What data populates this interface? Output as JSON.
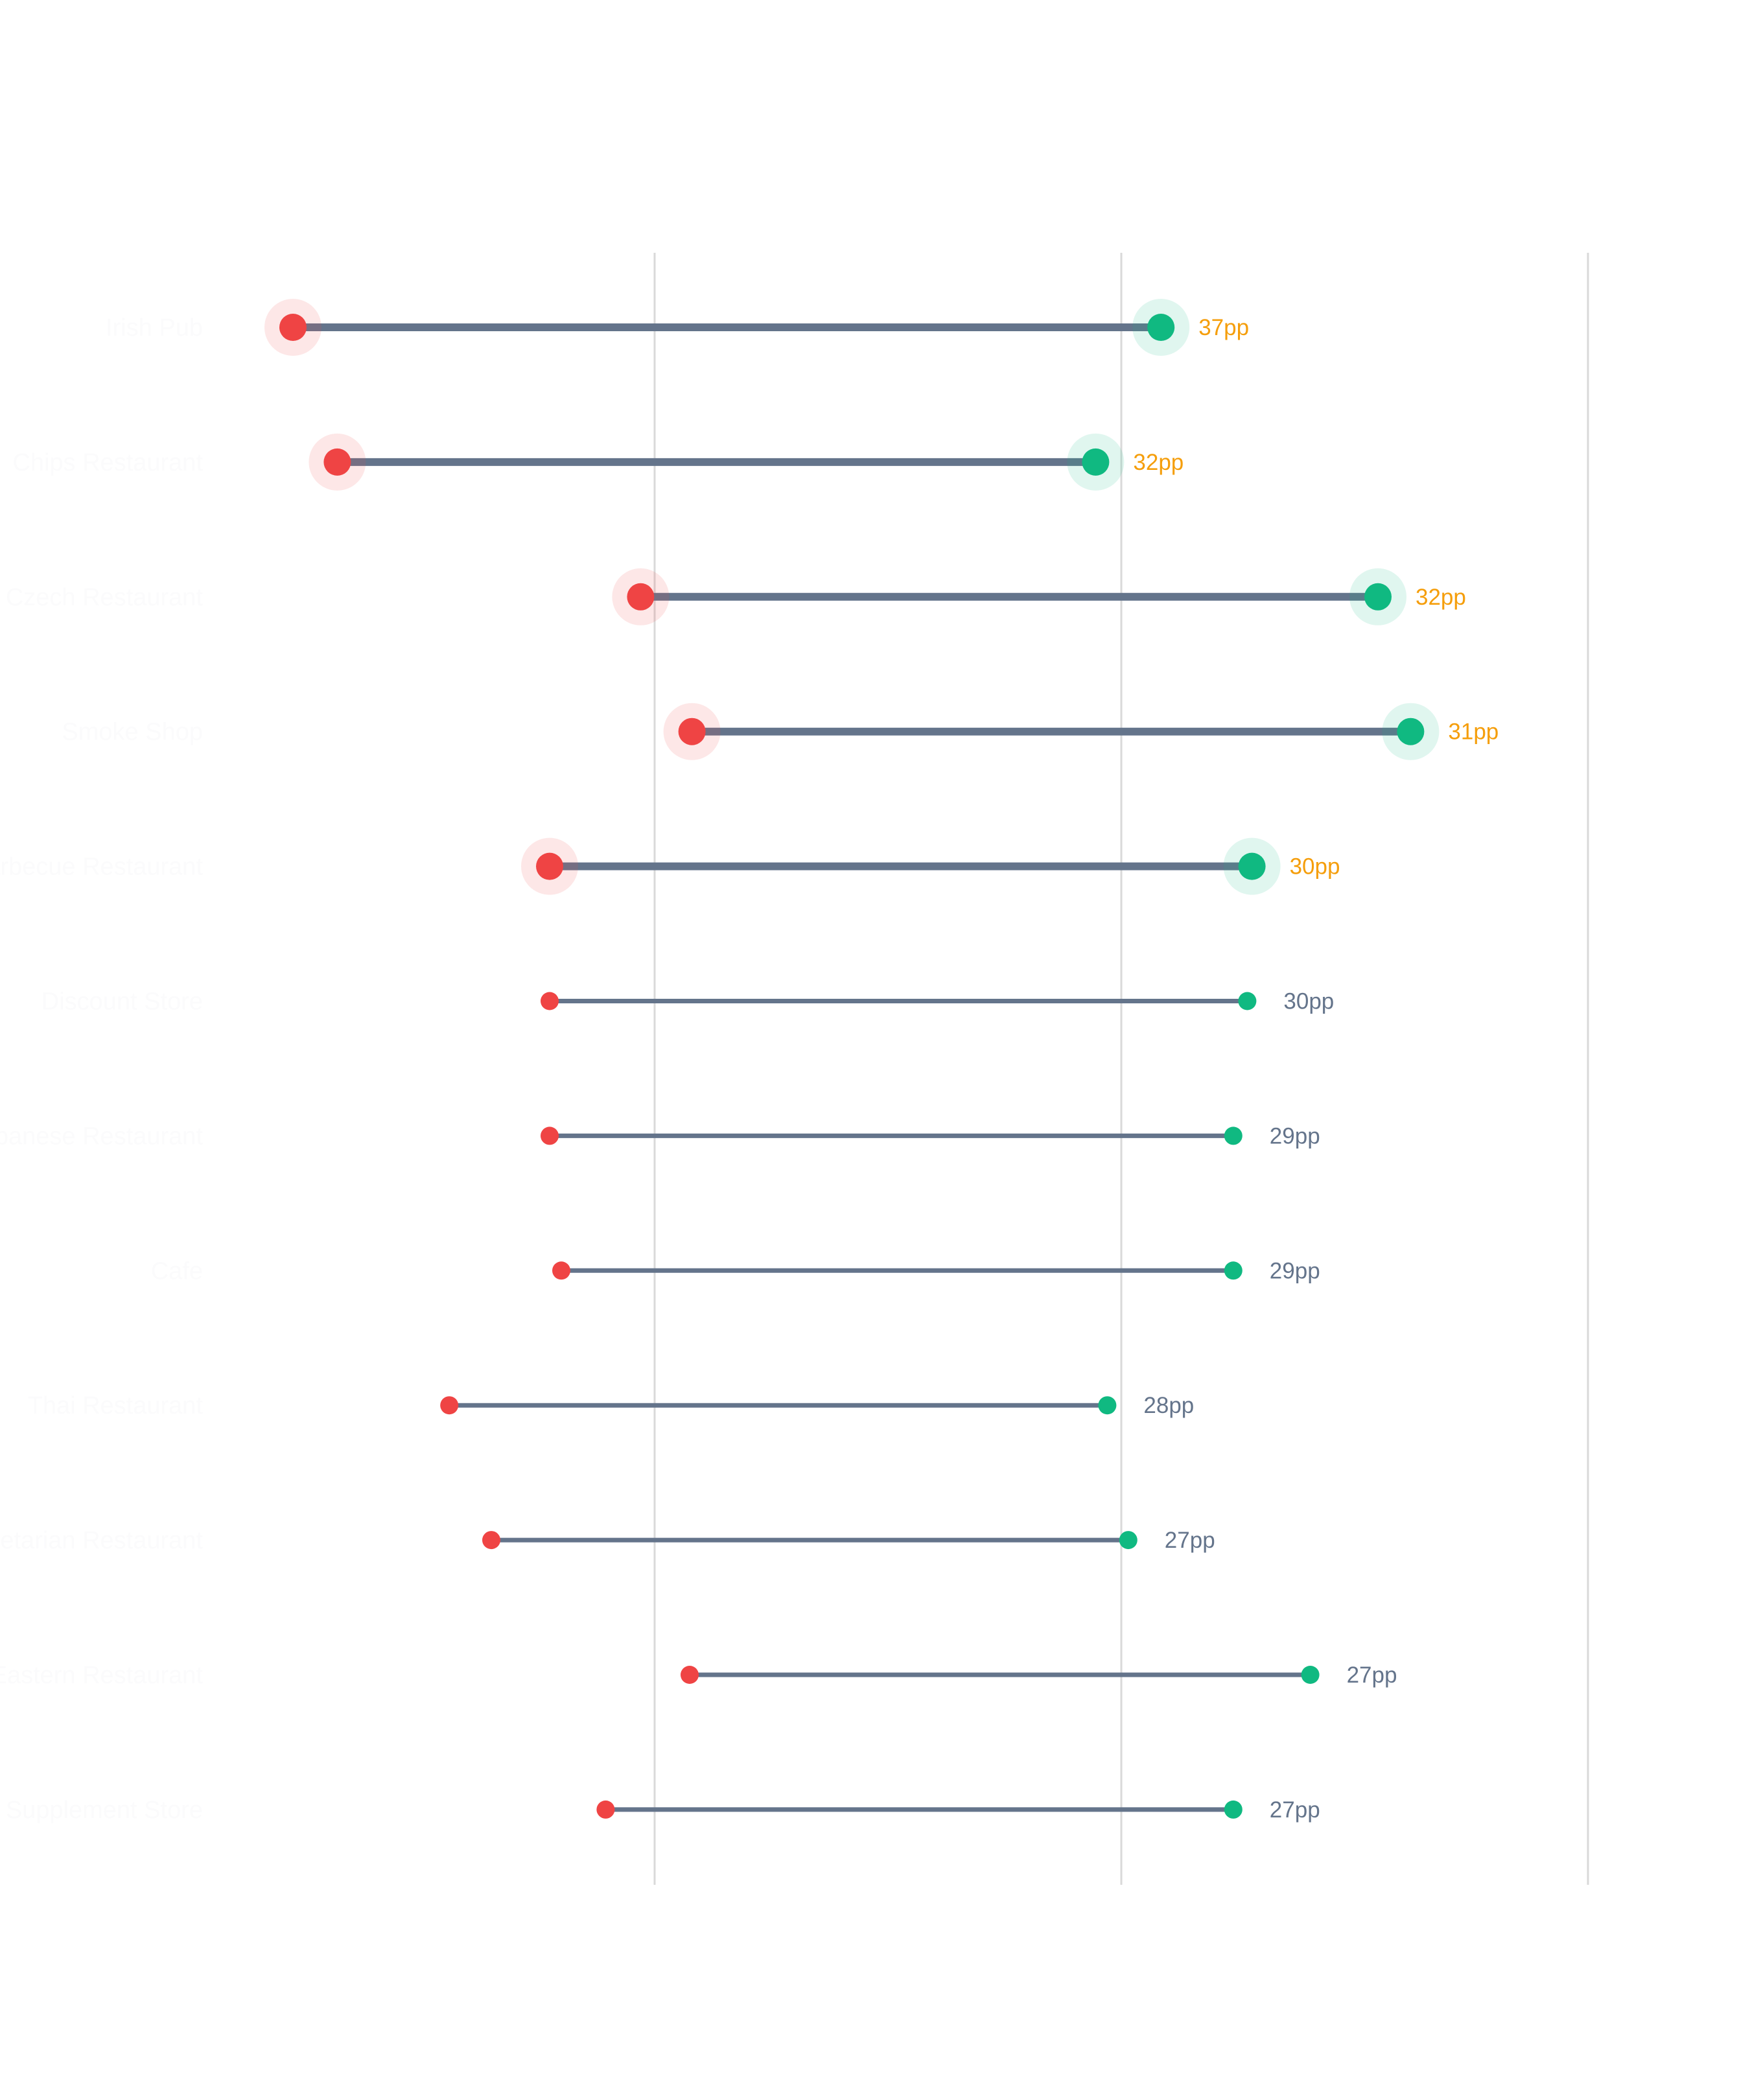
{
  "chart_data": {
    "type": "dumbbell",
    "title": "",
    "xlabel": "",
    "ylabel": "",
    "grid": "vertical lines",
    "colors": {
      "start": "#ef4444",
      "end": "#10b981",
      "connector": "#64748b",
      "highlight_label": "#f59e0b",
      "normal_label": "#64748b",
      "grid": "#d9d9d9"
    },
    "rows": [
      {
        "category": "Irish Pub",
        "start": 4.5,
        "end": 41.7,
        "label": "37pp",
        "highlight": true
      },
      {
        "category": "Chips Restaurant",
        "start": 6.4,
        "end": 38.9,
        "label": "32pp",
        "highlight": true
      },
      {
        "category": "Czech Restaurant",
        "start": 19.4,
        "end": 51.0,
        "label": "32pp",
        "highlight": true
      },
      {
        "category": "Smoke Shop",
        "start": 21.6,
        "end": 52.4,
        "label": "31pp",
        "highlight": true
      },
      {
        "category": "Barbecue Restaurant",
        "start": 15.5,
        "end": 45.6,
        "label": "30pp",
        "highlight": true
      },
      {
        "category": "Discount Store",
        "start": 15.5,
        "end": 45.4,
        "label": "30pp",
        "highlight": false
      },
      {
        "category": "Lebanese Restaurant",
        "start": 15.5,
        "end": 44.8,
        "label": "29pp",
        "highlight": false
      },
      {
        "category": "Cafe",
        "start": 16.0,
        "end": 44.8,
        "label": "29pp",
        "highlight": false
      },
      {
        "category": "Thai Restaurant",
        "start": 11.2,
        "end": 39.4,
        "label": "28pp",
        "highlight": false
      },
      {
        "category": "Vegetarian Restaurant",
        "start": 13.0,
        "end": 40.3,
        "label": "27pp",
        "highlight": false
      },
      {
        "category": "Middle Eastern Restaurant",
        "start": 21.5,
        "end": 48.1,
        "label": "27pp",
        "highlight": false
      },
      {
        "category": "Supplement Store",
        "start": 17.9,
        "end": 44.8,
        "label": "27pp",
        "highlight": false
      }
    ],
    "xlim": [
      0,
      60
    ],
    "gridlines": [
      20,
      40,
      60
    ]
  }
}
